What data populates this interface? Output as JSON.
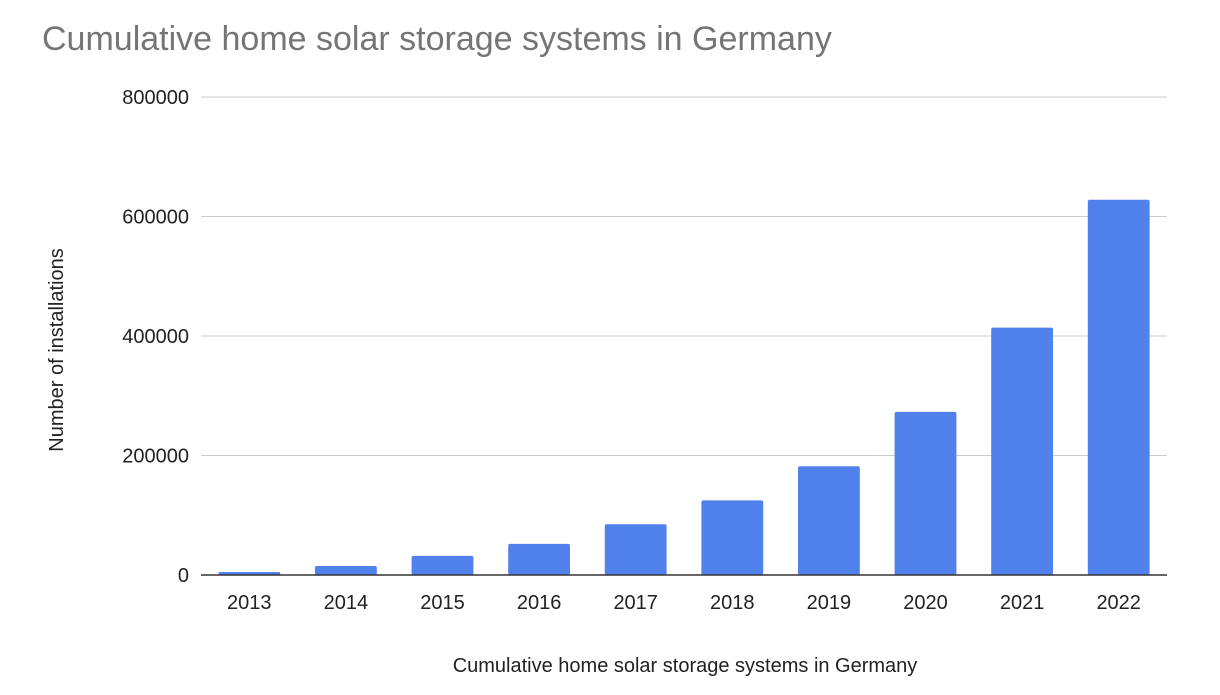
{
  "chart_data": {
    "type": "bar",
    "title": "Cumulative home solar storage systems in Germany",
    "xlabel": "Cumulative home solar storage systems in Germany",
    "ylabel": "Number of installations",
    "categories": [
      "2013",
      "2014",
      "2015",
      "2016",
      "2017",
      "2018",
      "2019",
      "2020",
      "2021",
      "2022"
    ],
    "series": [
      {
        "values": [
          5000,
          15000,
          32000,
          52000,
          85000,
          125000,
          182000,
          273000,
          414000,
          628000
        ]
      }
    ],
    "ylim": [
      0,
      800000
    ],
    "yticks": [
      "0",
      "200000",
      "400000",
      "600000",
      "800000"
    ],
    "grid": true,
    "legend": "none"
  },
  "colors": {
    "bar": "#5181ec",
    "title": "#757575",
    "text": "#222222",
    "grid": "#cccccc",
    "axis": "#333333"
  }
}
